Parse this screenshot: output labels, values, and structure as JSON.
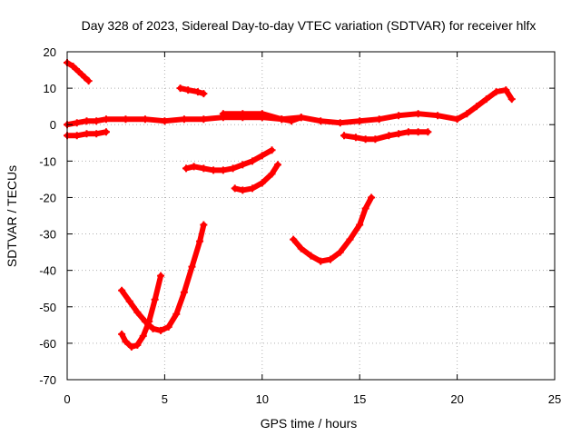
{
  "chart_data": {
    "type": "line",
    "title": "Day 328 of 2023, Sidereal Day-to-day VTEC variation (SDTVAR) for receiver hlfx",
    "xlabel": "GPS time / hours",
    "ylabel": "SDTVAR / TECUs",
    "xlim": [
      0,
      25
    ],
    "ylim": [
      -70,
      20
    ],
    "xticks": [
      0,
      5,
      10,
      15,
      20,
      25
    ],
    "yticks": [
      -70,
      -60,
      -50,
      -40,
      -30,
      -20,
      -10,
      0,
      10,
      20
    ],
    "grid": true,
    "color": "#ff0000",
    "series": [
      {
        "name": "trace-1",
        "x": [
          0,
          0.3,
          0.6,
          0.9,
          1.1
        ],
        "y": [
          17,
          16,
          14.5,
          13,
          12
        ]
      },
      {
        "name": "trace-2",
        "x": [
          0,
          0.5,
          1.0,
          1.5,
          2.0,
          3.0,
          4.0,
          5.0,
          6.0,
          7.0,
          8.0,
          9.0,
          10.0,
          11.0,
          12.0,
          13.0,
          14.0,
          15.0,
          16.0,
          17.0,
          18.0,
          19.0,
          20.0,
          20.5,
          21.0,
          21.5,
          22.0,
          22.5,
          22.8
        ],
        "y": [
          0,
          0.5,
          1,
          1,
          1.5,
          1.5,
          1.5,
          1,
          1.5,
          1.5,
          2,
          2,
          2,
          1.5,
          2,
          1,
          0.5,
          1,
          1.5,
          2.5,
          3,
          2.5,
          1.5,
          3,
          5,
          7,
          9,
          9.5,
          7
        ]
      },
      {
        "name": "trace-3",
        "x": [
          0,
          0.5,
          1.0,
          1.5,
          2.0
        ],
        "y": [
          -3,
          -3,
          -2.5,
          -2.5,
          -2
        ]
      },
      {
        "name": "trace-4",
        "x": [
          5.8,
          6.2,
          6.7,
          7.0
        ],
        "y": [
          10,
          9.5,
          9,
          8.5
        ]
      },
      {
        "name": "trace-5",
        "x": [
          8.0,
          9.0,
          10.0,
          11.0,
          11.5,
          12.0
        ],
        "y": [
          3,
          3,
          3,
          1.5,
          1,
          2
        ]
      },
      {
        "name": "trace-6",
        "x": [
          14.2,
          14.8,
          15.3,
          15.8,
          16.5,
          17.0,
          17.5,
          18.0,
          18.5
        ],
        "y": [
          -3,
          -3.5,
          -4,
          -4,
          -3,
          -2.5,
          -2,
          -2,
          -2
        ]
      },
      {
        "name": "trace-7",
        "x": [
          6.1,
          6.5,
          7.0,
          7.5,
          8.0,
          8.5,
          9.0,
          9.5,
          10.0,
          10.5
        ],
        "y": [
          -12,
          -11.5,
          -12,
          -12.5,
          -12.5,
          -12,
          -11,
          -10,
          -8.5,
          -7
        ]
      },
      {
        "name": "trace-8",
        "x": [
          8.6,
          9.0,
          9.5,
          10.0,
          10.5,
          10.8
        ],
        "y": [
          -17.5,
          -18,
          -17.5,
          -16,
          -13.5,
          -11
        ]
      },
      {
        "name": "trace-9",
        "x": [
          11.6,
          12.0,
          12.5,
          13.0,
          13.5,
          14.0,
          14.5,
          15.0,
          15.3,
          15.6
        ],
        "y": [
          -31.5,
          -34,
          -36,
          -37.5,
          -37,
          -35,
          -31.5,
          -27.5,
          -23,
          -20
        ]
      },
      {
        "name": "trace-10",
        "x": [
          2.8,
          3.0,
          3.3,
          3.6,
          3.9,
          4.2,
          4.5,
          4.8
        ],
        "y": [
          -57.5,
          -59.5,
          -61,
          -60.5,
          -58,
          -54,
          -48,
          -41.5
        ]
      },
      {
        "name": "trace-11",
        "x": [
          2.8,
          3.2,
          3.6,
          4.0,
          4.4,
          4.8,
          5.2,
          5.6,
          6.0,
          6.4,
          6.8,
          7.0
        ],
        "y": [
          -45.5,
          -48.5,
          -51.5,
          -54,
          -56,
          -56.5,
          -55.5,
          -52,
          -46,
          -39,
          -32,
          -27.5
        ]
      }
    ]
  }
}
